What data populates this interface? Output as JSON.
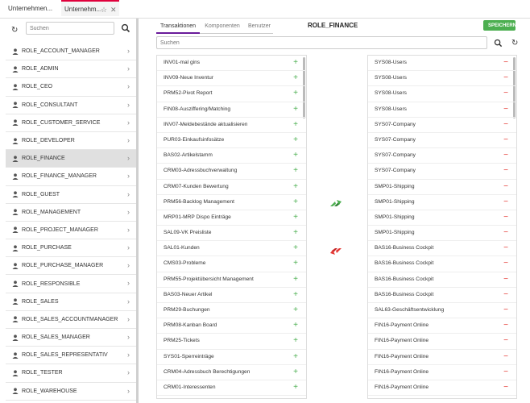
{
  "window_tabs": [
    {
      "label": "Unternehmen..."
    },
    {
      "label": "Unternehm..."
    }
  ],
  "left": {
    "search_placeholder": "Suchen",
    "roles": [
      "ROLE_ACCOUNT_MANAGER",
      "ROLE_ADMIN",
      "ROLE_CEO",
      "ROLE_CONSULTANT",
      "ROLE_CUSTOMER_SERVICE",
      "ROLE_DEVELOPER",
      "ROLE_FINANCE",
      "ROLE_FINANCE_MANAGER",
      "ROLE_GUEST",
      "ROLE_MANAGEMENT",
      "ROLE_PROJECT_MANAGER",
      "ROLE_PURCHASE",
      "ROLE_PURCHASE_MANAGER",
      "ROLE_RESPONSIBLE",
      "ROLE_SALES",
      "ROLE_SALES_ACCOUNTMANAGER",
      "ROLE_SALES_MANAGER",
      "ROLE_SALES_REPRESENTATIV",
      "ROLE_TESTER",
      "ROLE_WAREHOUSE"
    ],
    "selected_index": 6
  },
  "main": {
    "tabs": [
      "Transaktionen",
      "Komponenten",
      "Benutzer"
    ],
    "active_tab": 0,
    "title": "ROLE_FINANCE",
    "save_label": "SPEICHERN",
    "search_placeholder": "Suchen",
    "available": [
      "INV01-mal gins",
      "INV09-Neue Inventur",
      "PRM52-Pivot Report",
      "FIN08-Ausziffering/Matching",
      "INV07-Meldebestände aktualisieren",
      "PUR03-Einkaufsinfosätze",
      "BAS02-Artikelstamm",
      "CRM03-Adressbuchverwaltung",
      "CRM07-Kunden Bewertung",
      "PRM56-Backlog Management",
      "MRP01-MRP Dispo Einträge",
      "SAL09-VK Preisliste",
      "SAL01-Kunden",
      "CMS03-Probleme",
      "PRM55-Projektübersicht Management",
      "BAS03-Neuer Artikel",
      "PRM29-Buchungen",
      "PRM08-Kanban Board",
      "PRM25-Tickets",
      "SYS01-Sperreinträge",
      "CRM04-Adressbuch Berechtigungen",
      "CRM01-Interessenten",
      "PRM58-Projektabrechnung"
    ],
    "assigned": [
      "SYS08-Users",
      "SYS08-Users",
      "SYS08-Users",
      "SYS08-Users",
      "SYS07-Company",
      "SYS07-Company",
      "SYS07-Company",
      "SYS07-Company",
      "SMP01-Shipping",
      "SMP01-Shipping",
      "SMP01-Shipping",
      "SMP01-Shipping",
      "BAS16-Business Cockpit",
      "BAS16-Business Cockpit",
      "BAS16-Business Cockpit",
      "BAS16-Business Cockpit",
      "SAL63-Geschäftsentwicklung",
      "FIN16-Payment Online",
      "FIN16-Payment Online",
      "FIN16-Payment Online",
      "FIN16-Payment Online",
      "FIN16-Payment Online",
      "FIN16-Payment Online"
    ]
  },
  "colors": {
    "accent": "#6a1b9a",
    "save": "#4caf50",
    "add": "#4caf50",
    "remove": "#e53935",
    "tab_marker": "#e0003c"
  }
}
